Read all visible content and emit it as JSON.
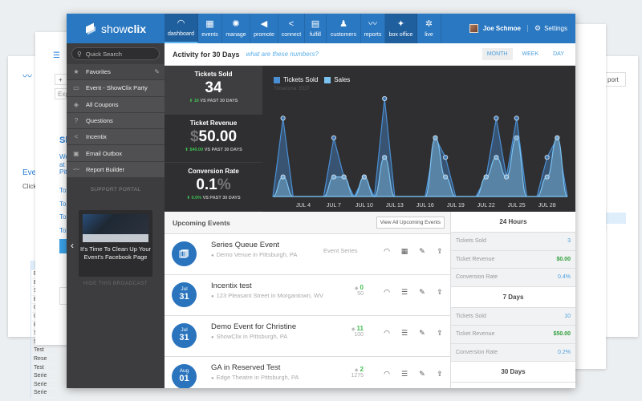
{
  "background_pages": {
    "left_back": {
      "title": "E",
      "chart_ticks": [
        "₹4",
        "₹2",
        "₹",
        "-"
      ],
      "section_title": "Even",
      "section_text": "Click",
      "table_header": "",
      "table_rows": [
        "Even",
        "Even",
        "Scan",
        "Buy",
        "Geof",
        "Ques",
        "Free",
        "Show",
        "Singl",
        "Test",
        "Rese",
        "Test",
        "Serie",
        "Serie",
        "Serie"
      ]
    },
    "left_front": {
      "menu_icon": "list-icon",
      "input1": "+",
      "input2": "Exp",
      "card_title": "Sh",
      "card_text": [
        "We",
        "at",
        "Pit"
      ],
      "links": [
        "To",
        "To",
        "To",
        "To"
      ]
    },
    "right": {
      "button": "port",
      "table_header": "otal C"
    }
  },
  "app": {
    "logo_text_light": "show",
    "logo_text_bold": "clix"
  },
  "nav": [
    {
      "label": "dashboard",
      "icon": "gauge-icon",
      "glyph": "◠",
      "active": true
    },
    {
      "label": "events",
      "icon": "calendar-icon",
      "glyph": "▦"
    },
    {
      "label": "manage",
      "icon": "gear-icon",
      "glyph": "✺"
    },
    {
      "label": "promote",
      "icon": "megaphone-icon",
      "glyph": "◀"
    },
    {
      "label": "connect",
      "icon": "share-icon",
      "glyph": "<"
    },
    {
      "label": "fulfill",
      "icon": "box-icon",
      "glyph": "▤"
    },
    {
      "label": "customers",
      "icon": "users-icon",
      "glyph": "♟"
    },
    {
      "label": "reports",
      "icon": "trend-icon",
      "glyph": "〰"
    },
    {
      "label": "box office",
      "icon": "tickets-icon",
      "glyph": "✦",
      "dark": true
    },
    {
      "label": "live",
      "icon": "live-icon",
      "glyph": "✲"
    }
  ],
  "user": {
    "name": "Joe Schmoe",
    "settings_label": "Settings",
    "settings_glyph": "⚙"
  },
  "sidebar": {
    "search_placeholder": "Quick Search",
    "search_glyph": "⚲",
    "items": [
      {
        "label": "Favorites",
        "icon": "star-icon",
        "glyph": "★",
        "editable": true
      },
      {
        "label": "Event - ShowClix Party",
        "icon": "calendar-icon",
        "glyph": "▭"
      },
      {
        "label": "All Coupons",
        "icon": "coupon-icon",
        "glyph": "◈"
      },
      {
        "label": "Questions",
        "icon": "question-icon",
        "glyph": "?"
      },
      {
        "label": "Incentix",
        "icon": "share-icon",
        "glyph": "<"
      },
      {
        "label": "Email Outbox",
        "icon": "outbox-icon",
        "glyph": "▣"
      },
      {
        "label": "Report Builder",
        "icon": "trend-icon",
        "glyph": "〰"
      }
    ],
    "edit_glyph": "✎",
    "support_label": "SUPPORT PORTAL",
    "broadcast": {
      "text": "It's Time To Clean Up Your Event's Facebook Page",
      "prev_glyph": "‹",
      "hide_label": "HIDE THIS BROADCAST"
    }
  },
  "activity": {
    "title": "Activity for 30 Days",
    "help_link": "what are these numbers?",
    "ranges": [
      "MONTH",
      "WEEK",
      "DAY"
    ],
    "selected_range": "MONTH"
  },
  "stats": [
    {
      "label": "Tickets Sold",
      "prefix": "",
      "value": "34",
      "suffix": "",
      "change": "16",
      "change_text": "VS PAST 30 DAYS"
    },
    {
      "label": "Ticket Revenue",
      "prefix": "$",
      "value": "50.00",
      "suffix": "",
      "change": "$40.00",
      "change_text": "VS PAST 30 DAYS"
    },
    {
      "label": "Conversion Rate",
      "prefix": "",
      "value": "0.1",
      "suffix": "%",
      "change": "0.0%",
      "change_text": "VS PAST 30 DAYS"
    }
  ],
  "chart_data": {
    "type": "area",
    "title": "",
    "timezone": "Timezone: EDT",
    "legend": [
      "Tickets Sold",
      "Sales"
    ],
    "colors": {
      "Tickets Sold": "#4a8fd4",
      "Sales": "#7cc2f0"
    },
    "tick_labels": [
      "JUL 4",
      "JUL 7",
      "JUL 10",
      "JUL 13",
      "JUL 16",
      "JUL 19",
      "JUL 22",
      "JUL 25",
      "JUL 28"
    ],
    "x": [
      "Jul 1",
      "Jul 2",
      "Jul 3",
      "Jul 4",
      "Jul 5",
      "Jul 6",
      "Jul 7",
      "Jul 8",
      "Jul 9",
      "Jul 10",
      "Jul 11",
      "Jul 12",
      "Jul 13",
      "Jul 14",
      "Jul 15",
      "Jul 16",
      "Jul 17",
      "Jul 18",
      "Jul 19",
      "Jul 20",
      "Jul 21",
      "Jul 22",
      "Jul 23",
      "Jul 24",
      "Jul 25",
      "Jul 26",
      "Jul 27",
      "Jul 28",
      "Jul 29",
      "Jul 30"
    ],
    "series": [
      {
        "name": "Tickets Sold",
        "values": [
          0,
          4,
          0,
          0,
          0,
          0,
          3,
          1,
          0,
          1,
          0,
          5,
          0,
          0,
          0,
          0,
          3,
          2,
          0,
          0,
          0,
          1,
          4,
          1,
          4,
          0,
          0,
          2,
          3,
          0
        ]
      },
      {
        "name": "Sales",
        "values": [
          0,
          1,
          0,
          0,
          0,
          0,
          1,
          1,
          0,
          1,
          0,
          2,
          0,
          0,
          0,
          0,
          3,
          1,
          0,
          0,
          0,
          1,
          2,
          1,
          3,
          0,
          0,
          1,
          3,
          0
        ]
      }
    ],
    "ylim": [
      0,
      5.5
    ],
    "grid": false,
    "legend_position": "top-left"
  },
  "upcoming": {
    "title": "Upcoming Events",
    "view_all": "View All Upcoming Events",
    "events": [
      {
        "name": "Series Queue Event",
        "venue": "Demo Venue in Pittsburgh, PA",
        "type": "Event Series",
        "month": "",
        "day": "",
        "series": true,
        "sold": "",
        "capacity": "",
        "second_action": "calendar-icon",
        "second_glyph": "▦"
      },
      {
        "name": "Incentix test",
        "venue": "123 Pleasant Street in Morgantown, WV",
        "type": "",
        "month": "Jul",
        "day": "31",
        "sold": "0",
        "capacity": "50",
        "second_action": "list-icon",
        "second_glyph": "☰"
      },
      {
        "name": "Demo Event for Christine",
        "venue": "ShowClix in Pittsburgh, PA",
        "type": "",
        "month": "Jul",
        "day": "31",
        "sold": "11",
        "capacity": "100",
        "second_action": "list-icon",
        "second_glyph": "☰"
      },
      {
        "name": "GA in Reserved Test",
        "venue": "Edge Theatre in Pittsburgh, PA",
        "type": "",
        "month": "Aug",
        "day": "01",
        "sold": "2",
        "capacity": "1275",
        "second_action": "list-icon",
        "second_glyph": "☰"
      }
    ],
    "action_glyphs": {
      "dashboard": "◠",
      "edit": "✎",
      "export": "⇪",
      "tag": "◆",
      "pin": "⚲"
    }
  },
  "summary": [
    {
      "title": "24 Hours",
      "rows": [
        {
          "label": "Tickets Sold",
          "value": "3",
          "color": "blue"
        },
        {
          "label": "Ticket Revenue",
          "value": "$0.00",
          "color": "green"
        },
        {
          "label": "Conversion Rate",
          "value": "0.4%",
          "color": "blue"
        }
      ]
    },
    {
      "title": "7 Days",
      "rows": [
        {
          "label": "Tickets Sold",
          "value": "10",
          "color": "blue"
        },
        {
          "label": "Ticket Revenue",
          "value": "$50.00",
          "color": "green"
        },
        {
          "label": "Conversion Rate",
          "value": "0.2%",
          "color": "blue"
        }
      ]
    },
    {
      "title": "30 Days",
      "rows": []
    }
  ],
  "colors": {
    "brand_blue": "#2a78c2",
    "nav_active": "#1f5f9e",
    "sidebar_bg": "#3d3d3f",
    "chart_bg": "#2f2f31",
    "positive": "#3fbf50",
    "link": "#4a9fdc"
  }
}
